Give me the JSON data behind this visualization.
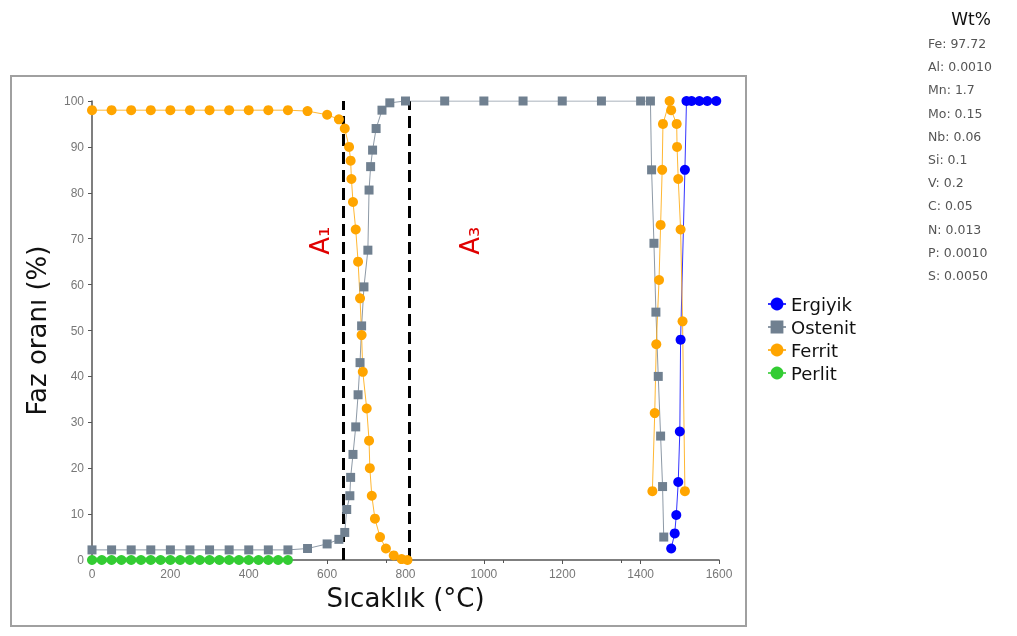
{
  "chart_data": {
    "type": "line",
    "xlabel": "Sıcaklık (°C)",
    "ylabel": "Faz oranı (%)",
    "xlim": [
      0,
      1600
    ],
    "xticks": [
      0,
      200,
      400,
      600,
      800,
      1000,
      1200,
      1400,
      1600
    ],
    "ylim": [
      0,
      100
    ],
    "yticks": [
      0,
      10,
      20,
      30,
      40,
      50,
      60,
      70,
      80,
      90,
      100
    ],
    "grid": false,
    "legend": "right",
    "series": [
      {
        "name": "Ergiyik",
        "color": "#0000ff",
        "marker": "circle",
        "x": [
          1478,
          1487,
          1491,
          1496,
          1500,
          1502,
          1513,
          1517,
          1530,
          1550,
          1570,
          1593
        ],
        "values": [
          2.5,
          5.8,
          9.8,
          17,
          28,
          48,
          85,
          100,
          100,
          100,
          100,
          100
        ]
      },
      {
        "name": "Ostenit",
        "color": "#708090",
        "marker": "square",
        "x": [
          0,
          50,
          100,
          150,
          200,
          250,
          300,
          350,
          400,
          450,
          500,
          550,
          600,
          630,
          645,
          650,
          658,
          660,
          666,
          673,
          679,
          684,
          688,
          694,
          704,
          707,
          711,
          716,
          725,
          740,
          760,
          800,
          900,
          1000,
          1100,
          1200,
          1300,
          1400,
          1425,
          1428,
          1434,
          1439,
          1445,
          1451,
          1456,
          1459
        ],
        "values": [
          2.2,
          2.2,
          2.2,
          2.2,
          2.2,
          2.2,
          2.2,
          2.2,
          2.2,
          2.2,
          2.2,
          2.5,
          3.5,
          4.5,
          6,
          11,
          14,
          18,
          23,
          29,
          36,
          43,
          51,
          59.5,
          67.5,
          80.6,
          85.7,
          89.3,
          94,
          98,
          99.6,
          100,
          100,
          100,
          100,
          100,
          100,
          100,
          100,
          85,
          69,
          54,
          40,
          27,
          16,
          5
        ]
      },
      {
        "name": "Ferrit",
        "color": "#ffa500",
        "marker": "circle",
        "x": [
          0,
          50,
          100,
          150,
          200,
          250,
          300,
          350,
          400,
          450,
          500,
          550,
          600,
          630,
          645,
          656,
          660,
          662,
          666,
          673,
          679,
          684,
          688,
          691,
          701,
          707,
          709,
          714,
          722,
          735,
          750,
          770,
          790,
          805,
          1000,
          1430,
          1436,
          1440,
          1447,
          1451,
          1455,
          1457,
          1474,
          1478,
          1492,
          1493,
          1496,
          1502,
          1507,
          1513
        ],
        "values": [
          98,
          98,
          98,
          98,
          98,
          98,
          98,
          98,
          98,
          98,
          98,
          97.8,
          97,
          96,
          94,
          90,
          87,
          83,
          78,
          72,
          65,
          57,
          49,
          41,
          33,
          26,
          20,
          14,
          9,
          5,
          2.5,
          1,
          0.2,
          0,
          null,
          15,
          32,
          47,
          61,
          73,
          85,
          95,
          100,
          98,
          95,
          90,
          83,
          72,
          52,
          15
        ]
      },
      {
        "name": "Perlit",
        "color": "#33cc33",
        "marker": "circle",
        "x": [
          0,
          25,
          50,
          75,
          100,
          125,
          150,
          175,
          200,
          225,
          250,
          275,
          300,
          325,
          350,
          375,
          400,
          425,
          450,
          475,
          500
        ],
        "values": [
          0,
          0,
          0,
          0,
          0,
          0,
          0,
          0,
          0,
          0,
          0,
          0,
          0,
          0,
          0,
          0,
          0,
          0,
          0,
          0,
          0
        ]
      }
    ],
    "ref_lines": [
      {
        "axis": "x",
        "value": 640,
        "label": "A₁",
        "color": "#000000",
        "line_style": "dashed"
      },
      {
        "axis": "x",
        "value": 810,
        "label": "A₃",
        "color": "#000000",
        "line_style": "dashed"
      }
    ],
    "annotations": [
      "Wt%",
      "Fe: 97.72",
      "Al: 0.0010",
      "Mn: 1.7",
      "Mo: 0.15",
      "Nb: 0.06",
      "Si: 0.1",
      "V: 0.2",
      "C: 0.05",
      "N: 0.013",
      "P: 0.0010",
      "S: 0.0050"
    ]
  }
}
